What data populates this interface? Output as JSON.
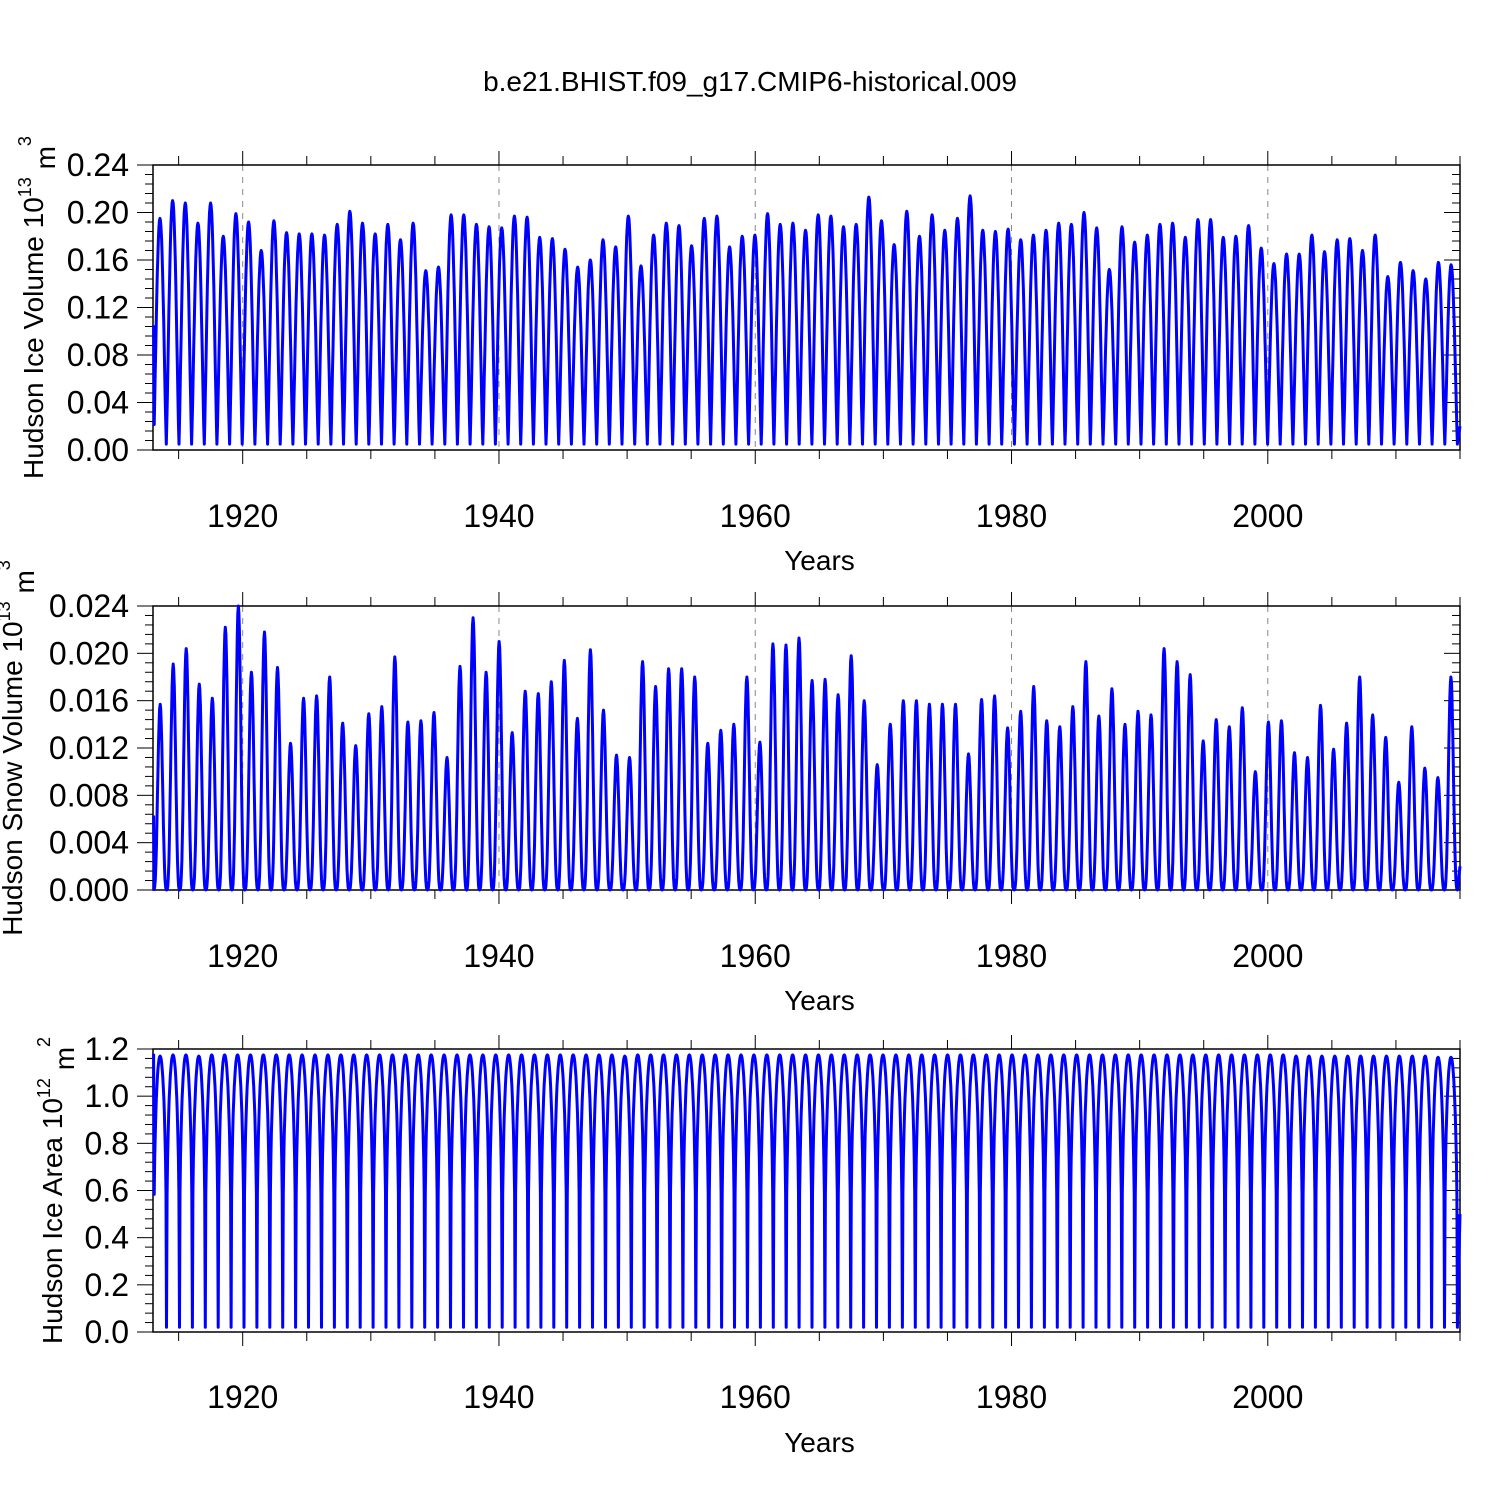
{
  "title": "b.e21.BHIST.f09_g17.CMIP6-historical.009",
  "colors": {
    "line": "#0000ff",
    "axis": "#000000",
    "grid": "#888888"
  },
  "chart_data": [
    {
      "type": "line",
      "ylabel": "Hudson Ice Volume 10",
      "ylabel_exp": "13",
      "ylabel_unit": " m",
      "ylabel_unit_exp": "3",
      "xlabel": "Years",
      "xlim": [
        1913.0,
        2015.0
      ],
      "ylim": [
        0.0,
        0.24
      ],
      "yticks": [
        "0.00",
        "0.04",
        "0.08",
        "0.12",
        "0.16",
        "0.20",
        "0.24"
      ],
      "xticks": [
        "1920",
        "1940",
        "1960",
        "1980",
        "2000"
      ],
      "grid_x": true,
      "series_name": "Hudson Ice Volume",
      "start": 0.105,
      "min_start": 0.005,
      "end_value": 0.02,
      "annual_peaks": [
        0.195,
        0.21,
        0.208,
        0.191,
        0.208,
        0.18,
        0.199,
        0.192,
        0.168,
        0.193,
        0.183,
        0.182,
        0.182,
        0.181,
        0.19,
        0.201,
        0.191,
        0.182,
        0.19,
        0.177,
        0.191,
        0.151,
        0.154,
        0.198,
        0.198,
        0.19,
        0.188,
        0.187,
        0.197,
        0.196,
        0.179,
        0.178,
        0.169,
        0.154,
        0.16,
        0.177,
        0.171,
        0.197,
        0.155,
        0.181,
        0.191,
        0.189,
        0.172,
        0.195,
        0.197,
        0.171,
        0.18,
        0.181,
        0.199,
        0.19,
        0.191,
        0.185,
        0.198,
        0.197,
        0.188,
        0.19,
        0.213,
        0.193,
        0.173,
        0.201,
        0.18,
        0.198,
        0.185,
        0.195,
        0.214,
        0.185,
        0.184,
        0.186,
        0.177,
        0.181,
        0.185,
        0.191,
        0.19,
        0.2,
        0.187,
        0.152,
        0.188,
        0.175,
        0.181,
        0.19,
        0.191,
        0.179,
        0.194,
        0.194,
        0.179,
        0.18,
        0.189,
        0.17,
        0.157,
        0.165,
        0.165,
        0.181,
        0.167,
        0.177,
        0.178,
        0.168,
        0.181,
        0.146,
        0.158,
        0.151,
        0.144,
        0.158,
        0.156
      ]
    },
    {
      "type": "line",
      "ylabel": "Hudson Snow Volume 10",
      "ylabel_exp": "13",
      "ylabel_unit": " m",
      "ylabel_unit_exp": "3",
      "xlabel": "Years",
      "xlim": [
        1913.0,
        2015.0
      ],
      "ylim": [
        0.0,
        0.024
      ],
      "yticks": [
        "0.000",
        "0.004",
        "0.008",
        "0.012",
        "0.016",
        "0.020",
        "0.024"
      ],
      "xticks": [
        "1920",
        "1940",
        "1960",
        "1980",
        "2000"
      ],
      "grid_x": true,
      "series_name": "Hudson Snow Volume",
      "start": 0.0063,
      "min_start": 0.0,
      "end_value": 0.002,
      "annual_peaks": [
        0.0157,
        0.0191,
        0.0204,
        0.0174,
        0.0162,
        0.0222,
        0.024,
        0.0184,
        0.0218,
        0.0188,
        0.0124,
        0.0162,
        0.0164,
        0.018,
        0.0141,
        0.0122,
        0.0149,
        0.0155,
        0.0197,
        0.0142,
        0.0143,
        0.015,
        0.0112,
        0.0189,
        0.023,
        0.0184,
        0.021,
        0.0133,
        0.0168,
        0.0166,
        0.0176,
        0.0194,
        0.0145,
        0.0203,
        0.0152,
        0.0114,
        0.0112,
        0.0193,
        0.0172,
        0.0187,
        0.0187,
        0.018,
        0.0124,
        0.0135,
        0.014,
        0.018,
        0.0125,
        0.0208,
        0.0207,
        0.0213,
        0.0177,
        0.0178,
        0.0165,
        0.0198,
        0.016,
        0.0106,
        0.014,
        0.016,
        0.016,
        0.0157,
        0.0157,
        0.0157,
        0.0115,
        0.0161,
        0.0164,
        0.0137,
        0.0151,
        0.0172,
        0.0143,
        0.0138,
        0.0155,
        0.0193,
        0.0147,
        0.017,
        0.014,
        0.0151,
        0.0148,
        0.0204,
        0.0193,
        0.0182,
        0.0126,
        0.0144,
        0.0138,
        0.0154,
        0.01,
        0.0142,
        0.0143,
        0.0116,
        0.0112,
        0.0156,
        0.0119,
        0.0141,
        0.018,
        0.0148,
        0.0129,
        0.0091,
        0.0138,
        0.0103,
        0.0095,
        0.018
      ]
    },
    {
      "type": "line",
      "ylabel": "Hudson Ice Area 10",
      "ylabel_exp": "12",
      "ylabel_unit": " m",
      "ylabel_unit_exp": "2",
      "xlabel": "Years",
      "xlim": [
        1913.0,
        2015.0
      ],
      "ylim": [
        0.0,
        1.2
      ],
      "yticks": [
        "0.0",
        "0.2",
        "0.4",
        "0.6",
        "0.8",
        "1.0",
        "1.2"
      ],
      "xticks": [
        "1920",
        "1940",
        "1960",
        "1980",
        "2000"
      ],
      "grid_x": false,
      "series_name": "Hudson Ice Area",
      "start": 1.18,
      "min_start": 0.02,
      "end_value": 0.5,
      "annual_peaks": [
        1.17,
        1.175,
        1.175,
        1.17,
        1.175,
        1.175,
        1.175,
        1.175,
        1.175,
        1.175,
        1.175,
        1.175,
        1.175,
        1.175,
        1.175,
        1.175,
        1.175,
        1.175,
        1.175,
        1.175,
        1.175,
        1.175,
        1.175,
        1.175,
        1.175,
        1.175,
        1.175,
        1.175,
        1.175,
        1.175,
        1.175,
        1.175,
        1.175,
        1.175,
        1.175,
        1.175,
        1.17,
        1.175,
        1.175,
        1.175,
        1.175,
        1.175,
        1.175,
        1.175,
        1.175,
        1.175,
        1.175,
        1.175,
        1.175,
        1.175,
        1.175,
        1.175,
        1.175,
        1.175,
        1.175,
        1.175,
        1.175,
        1.175,
        1.175,
        1.175,
        1.175,
        1.175,
        1.175,
        1.175,
        1.175,
        1.175,
        1.175,
        1.175,
        1.175,
        1.175,
        1.175,
        1.175,
        1.175,
        1.175,
        1.175,
        1.175,
        1.175,
        1.175,
        1.175,
        1.175,
        1.175,
        1.175,
        1.175,
        1.175,
        1.175,
        1.175,
        1.175,
        1.175,
        1.17,
        1.17,
        1.17,
        1.17,
        1.17,
        1.17,
        1.17,
        1.17,
        1.17,
        1.17,
        1.17,
        1.165,
        1.165
      ]
    }
  ]
}
